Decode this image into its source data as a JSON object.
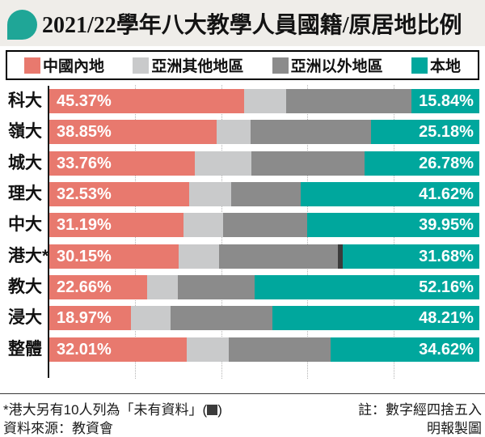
{
  "title": {
    "text": "2021/22學年八大教學人員國籍/原居地比例"
  },
  "colors": {
    "mainland": "#e8796e",
    "asia_other": "#c9cacb",
    "outside_asia": "#8b8b8b",
    "nodata": "#3b3b3b",
    "local": "#00a79d",
    "title_icon": "#1fa697",
    "title_band_bg": "#efede9",
    "axis": "#1a1a1a"
  },
  "legend": {
    "items": [
      {
        "key": "mainland",
        "label": "中國內地"
      },
      {
        "key": "asia_other",
        "label": "亞洲其他地區"
      },
      {
        "key": "outside_asia",
        "label": "亞洲以外地區"
      },
      {
        "key": "local",
        "label": "本地"
      }
    ]
  },
  "chart_data": {
    "type": "bar",
    "orientation": "horizontal-stacked",
    "unit": "percent",
    "xlim": [
      0,
      100
    ],
    "gridlines_pct": [
      20,
      40,
      60,
      80
    ],
    "grid": "dotted-vertical",
    "legend_position": "top",
    "series_names": [
      "中國內地",
      "亞洲其他地區",
      "亞洲以外地區",
      "未有資料",
      "本地"
    ],
    "rows": [
      {
        "label": "科大",
        "segments": [
          {
            "key": "mainland",
            "value": 45.37,
            "text": "45.37%"
          },
          {
            "key": "asia_other",
            "value": 9.8
          },
          {
            "key": "outside_asia",
            "value": 28.99
          },
          {
            "key": "local",
            "value": 15.84,
            "text": "15.84%"
          }
        ]
      },
      {
        "label": "嶺大",
        "segments": [
          {
            "key": "mainland",
            "value": 38.85,
            "text": "38.85%"
          },
          {
            "key": "asia_other",
            "value": 7.9
          },
          {
            "key": "outside_asia",
            "value": 28.07
          },
          {
            "key": "local",
            "value": 25.18,
            "text": "25.18%"
          }
        ]
      },
      {
        "label": "城大",
        "segments": [
          {
            "key": "mainland",
            "value": 33.76,
            "text": "33.76%"
          },
          {
            "key": "asia_other",
            "value": 13.2
          },
          {
            "key": "outside_asia",
            "value": 26.26
          },
          {
            "key": "local",
            "value": 26.78,
            "text": "26.78%"
          }
        ]
      },
      {
        "label": "理大",
        "segments": [
          {
            "key": "mainland",
            "value": 32.53,
            "text": "32.53%"
          },
          {
            "key": "asia_other",
            "value": 9.7
          },
          {
            "key": "outside_asia",
            "value": 16.15
          },
          {
            "key": "local",
            "value": 41.62,
            "text": "41.62%"
          }
        ]
      },
      {
        "label": "中大",
        "segments": [
          {
            "key": "mainland",
            "value": 31.19,
            "text": "31.19%"
          },
          {
            "key": "asia_other",
            "value": 9.3
          },
          {
            "key": "outside_asia",
            "value": 19.56
          },
          {
            "key": "local",
            "value": 39.95,
            "text": "39.95%"
          }
        ]
      },
      {
        "label": "港大*",
        "segments": [
          {
            "key": "mainland",
            "value": 30.15,
            "text": "30.15%"
          },
          {
            "key": "asia_other",
            "value": 9.3
          },
          {
            "key": "outside_asia",
            "value": 27.6
          },
          {
            "key": "nodata",
            "value": 1.27
          },
          {
            "key": "local",
            "value": 31.68,
            "text": "31.68%"
          }
        ]
      },
      {
        "label": "教大",
        "segments": [
          {
            "key": "mainland",
            "value": 22.66,
            "text": "22.66%"
          },
          {
            "key": "asia_other",
            "value": 7.3
          },
          {
            "key": "outside_asia",
            "value": 17.88
          },
          {
            "key": "local",
            "value": 52.16,
            "text": "52.16%"
          }
        ]
      },
      {
        "label": "浸大",
        "segments": [
          {
            "key": "mainland",
            "value": 18.97,
            "text": "18.97%"
          },
          {
            "key": "asia_other",
            "value": 9.2
          },
          {
            "key": "outside_asia",
            "value": 23.62
          },
          {
            "key": "local",
            "value": 48.21,
            "text": "48.21%"
          }
        ]
      },
      {
        "label": "整體",
        "segments": [
          {
            "key": "mainland",
            "value": 32.01,
            "text": "32.01%"
          },
          {
            "key": "asia_other",
            "value": 9.8
          },
          {
            "key": "outside_asia",
            "value": 23.57
          },
          {
            "key": "local",
            "value": 34.62,
            "text": "34.62%"
          }
        ]
      }
    ]
  },
  "footer": {
    "note_left_pre": "*港大另有10人列為「未有資料」(",
    "note_left_post": ")",
    "note_right": "註：數字經四捨五入",
    "source": "資料來源：教資會",
    "credit": "明報製圖"
  }
}
